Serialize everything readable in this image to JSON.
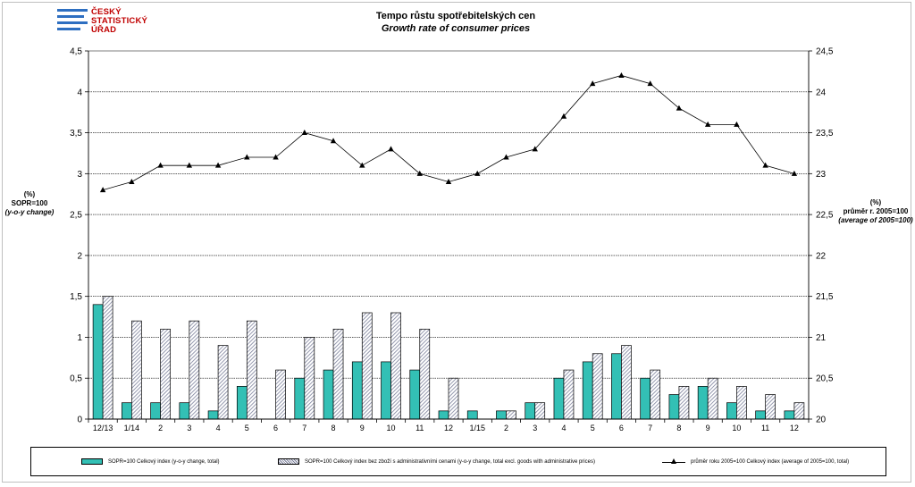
{
  "logo": {
    "line1": "ČESKÝ",
    "line2": "STATISTICKÝ",
    "line3": "ÚŘAD"
  },
  "title": "Tempo růstu spotřebitelských cen",
  "subtitle": "Growth rate of consumer prices",
  "left_axis": {
    "line1": "(%)",
    "line2": "SOPR=100",
    "line3": "(y-o-y change)"
  },
  "right_axis": {
    "line1": "(%)",
    "line2": "průměr r. 2005=100",
    "line3": "(average of 2005=100)"
  },
  "legend": {
    "s1": "SOPR=100 Celkový index (y-o-y change, total)",
    "s2": "SOPR=100 Celkový index bez zboží s administrativními cenami (y-o-y change, total excl. goods with administrative prices)",
    "s3": "průměr roku 2005=100 Celkový index (average of 2005=100, total)"
  },
  "colors": {
    "teal": "#33c0b5",
    "hatch": "#7a7f9a"
  },
  "chart_data": {
    "type": "bar",
    "title": "Tempo růstu spotřebitelských cen",
    "subtitle": "Growth rate of consumer prices",
    "categories": [
      "12/13",
      "1/14",
      "2",
      "3",
      "4",
      "5",
      "6",
      "7",
      "8",
      "9",
      "10",
      "11",
      "12",
      "1/15",
      "2",
      "3",
      "4",
      "5",
      "6",
      "7",
      "8",
      "9",
      "10",
      "11",
      "12"
    ],
    "y_left": {
      "ylim": [
        0,
        4.5
      ],
      "ticks": [
        "0",
        "0,5",
        "1",
        "1,5",
        "2",
        "2,5",
        "3",
        "3,5",
        "4",
        "4,5"
      ]
    },
    "y_right": {
      "ylim": [
        20,
        24.5
      ],
      "ticks": [
        "20",
        "20,5",
        "21",
        "21,5",
        "22",
        "22,5",
        "23",
        "23,5",
        "24",
        "24,5"
      ]
    },
    "series": [
      {
        "name": "SOPR=100 Celkový index (y-o-y change, total)",
        "type": "bar",
        "axis": "left",
        "values": [
          1.4,
          0.2,
          0.2,
          0.2,
          0.1,
          0.4,
          0.0,
          0.5,
          0.6,
          0.7,
          0.7,
          0.6,
          0.1,
          0.1,
          0.1,
          0.2,
          0.5,
          0.7,
          0.8,
          0.5,
          0.3,
          0.4,
          0.2,
          0.1,
          0.1
        ]
      },
      {
        "name": "SOPR=100 Celkový index bez zboží s administrativními cenami (y-o-y change, total excl. goods with administrative prices)",
        "type": "bar",
        "axis": "left",
        "values": [
          1.5,
          1.2,
          1.1,
          1.2,
          0.9,
          1.2,
          0.6,
          1.0,
          1.1,
          1.3,
          1.3,
          1.1,
          0.5,
          0.0,
          0.1,
          0.2,
          0.6,
          0.8,
          0.9,
          0.6,
          0.4,
          0.5,
          0.4,
          0.3,
          0.2
        ]
      },
      {
        "name": "průměr roku 2005=100 Celkový index (average of 2005=100, total)",
        "type": "line",
        "axis": "right",
        "values": [
          22.8,
          22.9,
          23.1,
          23.1,
          23.1,
          23.2,
          23.2,
          23.5,
          23.4,
          23.1,
          23.3,
          23.0,
          22.9,
          23.0,
          23.2,
          23.3,
          23.7,
          24.1,
          24.2,
          24.1,
          23.8,
          23.6,
          23.6,
          23.1,
          23.0
        ]
      }
    ],
    "grid": true,
    "legend_position": "bottom"
  }
}
